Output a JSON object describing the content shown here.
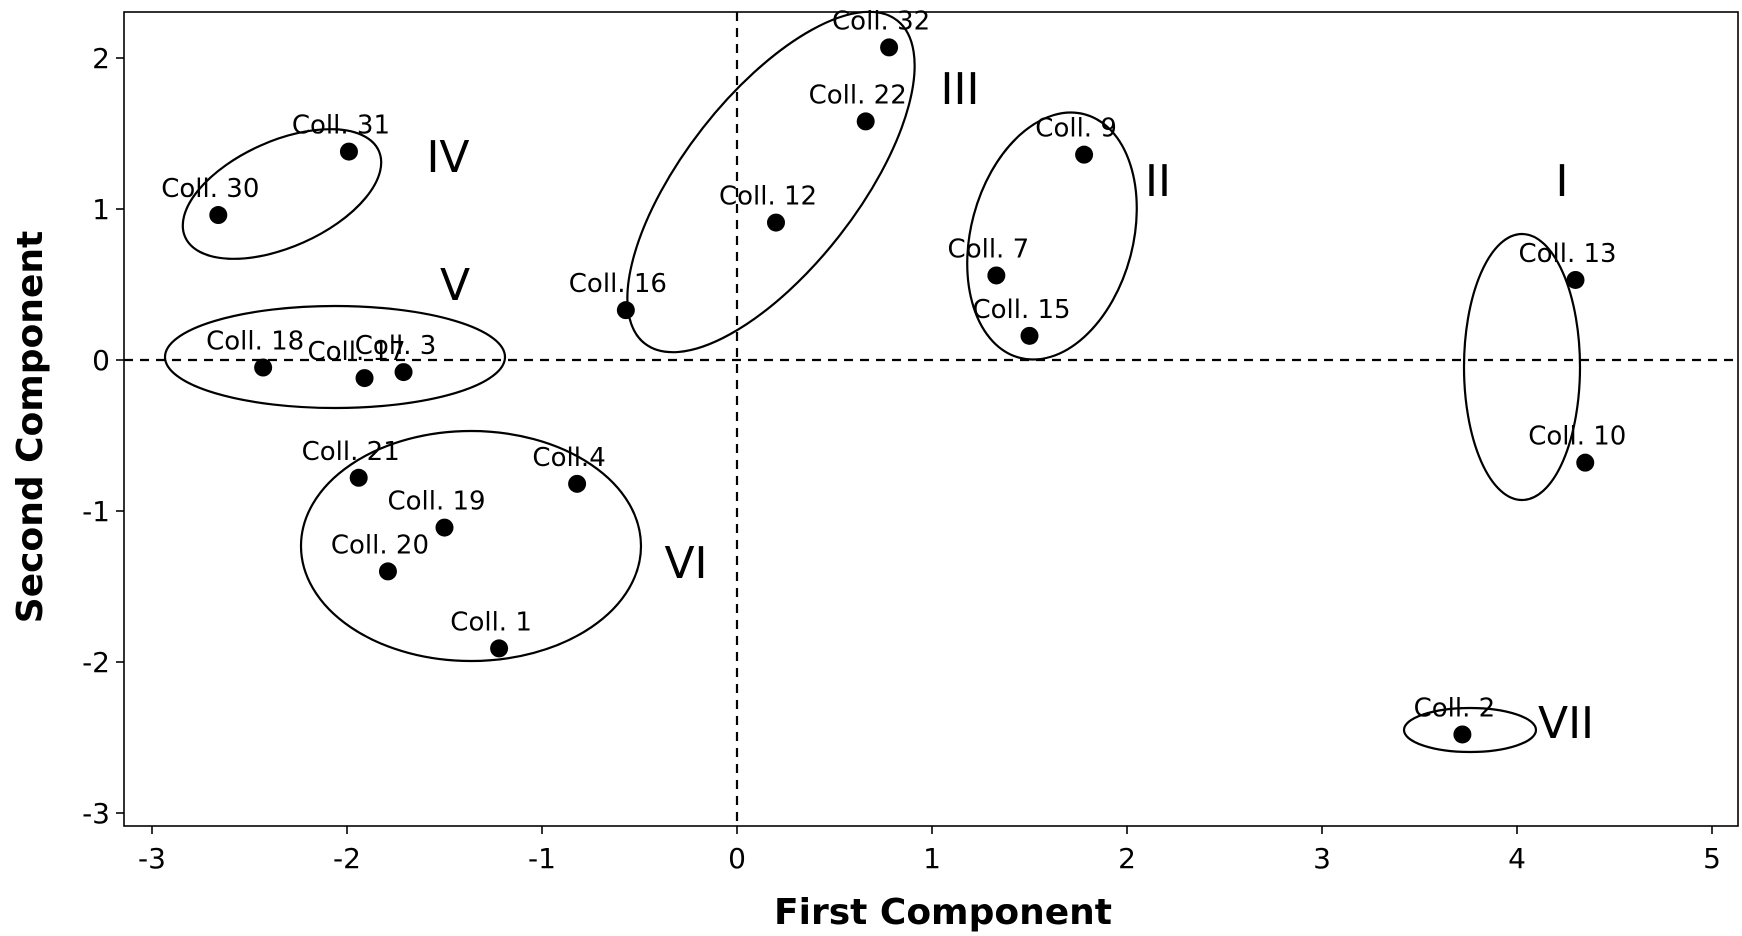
{
  "chart_data": {
    "type": "scatter",
    "title": "",
    "xlabel": "First Component",
    "ylabel": "Second Component",
    "xlim": [
      -3,
      5
    ],
    "ylim": [
      -3,
      2.2
    ],
    "xticks": [
      "-3",
      "-2",
      "-1",
      "0",
      "1",
      "2",
      "3",
      "4",
      "5"
    ],
    "yticks": [
      "-3",
      "-2",
      "-1",
      "0",
      "1",
      "2"
    ],
    "grid": false,
    "reference_lines": {
      "x": 0,
      "y": 0,
      "style": "dashed"
    },
    "points": [
      {
        "label": "Coll. 32",
        "x": 0.78,
        "y": 2.07
      },
      {
        "label": "Coll. 22",
        "x": 0.66,
        "y": 1.58
      },
      {
        "label": "Coll. 12",
        "x": 0.2,
        "y": 0.91
      },
      {
        "label": "Coll. 16",
        "x": -0.57,
        "y": 0.33
      },
      {
        "label": "Coll. 31",
        "x": -1.99,
        "y": 1.38
      },
      {
        "label": "Coll. 30",
        "x": -2.66,
        "y": 0.96
      },
      {
        "label": "Coll. 9",
        "x": 1.78,
        "y": 1.36
      },
      {
        "label": "Coll. 7",
        "x": 1.33,
        "y": 0.56
      },
      {
        "label": "Coll. 15",
        "x": 1.5,
        "y": 0.16
      },
      {
        "label": "Coll. 13",
        "x": 4.3,
        "y": 0.53
      },
      {
        "label": "Coll. 10",
        "x": 4.35,
        "y": -0.68
      },
      {
        "label": "Coll. 18",
        "x": -2.43,
        "y": -0.05
      },
      {
        "label": "Coll. 17",
        "x": -1.91,
        "y": -0.12
      },
      {
        "label": "Coll. 3",
        "x": -1.71,
        "y": -0.08
      },
      {
        "label": "Coll. 21",
        "x": -1.94,
        "y": -0.78
      },
      {
        "label": "Coll.4",
        "x": -0.82,
        "y": -0.82
      },
      {
        "label": "Coll. 19",
        "x": -1.5,
        "y": -1.11
      },
      {
        "label": "Coll. 20",
        "x": -1.79,
        "y": -1.4
      },
      {
        "label": "Coll. 1",
        "x": -1.22,
        "y": -1.91
      },
      {
        "label": "Coll. 2",
        "x": 3.72,
        "y": -2.48
      }
    ],
    "groups": [
      {
        "label": "I",
        "members": [
          "Coll. 13",
          "Coll. 10"
        ]
      },
      {
        "label": "II",
        "members": [
          "Coll. 9",
          "Coll. 7",
          "Coll. 15"
        ]
      },
      {
        "label": "III",
        "members": [
          "Coll. 32",
          "Coll. 22",
          "Coll. 12",
          "Coll. 16"
        ]
      },
      {
        "label": "IV",
        "members": [
          "Coll. 31",
          "Coll. 30"
        ]
      },
      {
        "label": "V",
        "members": [
          "Coll. 18",
          "Coll. 17",
          "Coll. 3"
        ]
      },
      {
        "label": "VI",
        "members": [
          "Coll. 21",
          "Coll.4",
          "Coll. 19",
          "Coll. 20",
          "Coll. 1"
        ]
      },
      {
        "label": "VII",
        "members": [
          "Coll. 2"
        ]
      }
    ]
  }
}
